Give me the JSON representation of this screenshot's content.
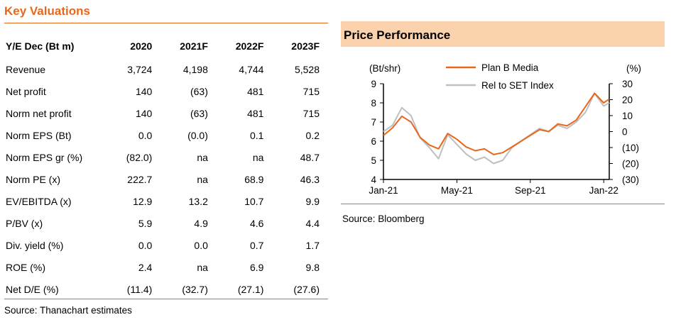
{
  "valuations": {
    "title": "Key Valuations",
    "headers": [
      "Y/E Dec (Bt m)",
      "2020",
      "2021F",
      "2022F",
      "2023F"
    ],
    "rows": [
      [
        "Revenue",
        "3,724",
        "4,198",
        "4,744",
        "5,528"
      ],
      [
        "Net profit",
        "140",
        "(63)",
        "481",
        "715"
      ],
      [
        "Norm net profit",
        "140",
        "(63)",
        "481",
        "715"
      ],
      [
        "Norm EPS (Bt)",
        "0.0",
        "(0.0)",
        "0.1",
        "0.2"
      ],
      [
        "Norm EPS gr (%)",
        "(82.0)",
        "na",
        "na",
        "48.7"
      ],
      [
        "Norm PE (x)",
        "222.7",
        "na",
        "68.9",
        "46.3"
      ],
      [
        "EV/EBITDA (x)",
        "12.9",
        "13.2",
        "10.7",
        "9.9"
      ],
      [
        "P/BV (x)",
        "5.9",
        "4.9",
        "4.6",
        "4.4"
      ],
      [
        "Div. yield (%)",
        "0.0",
        "0.0",
        "0.7",
        "1.7"
      ],
      [
        "ROE (%)",
        "2.4",
        "na",
        "6.9",
        "9.8"
      ],
      [
        "Net D/E (%)",
        "(11.4)",
        "(32.7)",
        "(27.1)",
        "(27.6)"
      ]
    ],
    "source": "Source: Thanachart estimates"
  },
  "price_performance": {
    "title": "Price Performance",
    "source": "Source: Bloomberg"
  },
  "colors": {
    "accent": "#e8671c",
    "header_fill": "#fcd2ad",
    "plan_b": "#e8671c",
    "rel_set": "#bfbfbf"
  },
  "chart_data": {
    "type": "line",
    "left_axis_label": "(Bt/shr)",
    "right_axis_label": "(%)",
    "x_ticks": [
      "Jan-21",
      "May-21",
      "Sep-21",
      "Jan-22"
    ],
    "y_left_ticks": [
      "9",
      "8",
      "7",
      "6",
      "5",
      "4"
    ],
    "y_right_ticks": [
      "30",
      "20",
      "10",
      "0",
      "(10)",
      "(20)",
      "(30)"
    ],
    "ylim_left": [
      4,
      9
    ],
    "ylim_right": [
      -30,
      30
    ],
    "grid": false,
    "legend_position": "top",
    "x_months": [
      0,
      0.5,
      1,
      1.5,
      2,
      2.5,
      3,
      3.5,
      4,
      4.5,
      5,
      5.5,
      6,
      6.5,
      7,
      7.5,
      8,
      8.5,
      9,
      9.5,
      10,
      10.5,
      11,
      11.5,
      12,
      12.3
    ],
    "series": [
      {
        "name": "Plan B Media",
        "axis": "left",
        "values": [
          6.3,
          6.7,
          7.3,
          7.0,
          6.2,
          5.8,
          5.6,
          6.4,
          6.1,
          5.7,
          5.5,
          5.6,
          5.3,
          5.4,
          5.7,
          6.0,
          6.3,
          6.6,
          6.5,
          6.9,
          6.8,
          7.1,
          7.8,
          8.5,
          8.0,
          8.2
        ],
        "color": "#e8671c"
      },
      {
        "name": "Rel to SET Index",
        "axis": "right",
        "values": [
          0,
          4,
          15,
          10,
          -4,
          -10,
          -17,
          -2,
          -8,
          -14,
          -18,
          -16,
          -20,
          -18,
          -10,
          -6,
          -2,
          2,
          0,
          4,
          2,
          6,
          12,
          24,
          16,
          18
        ],
        "color": "#bfbfbf"
      }
    ]
  }
}
